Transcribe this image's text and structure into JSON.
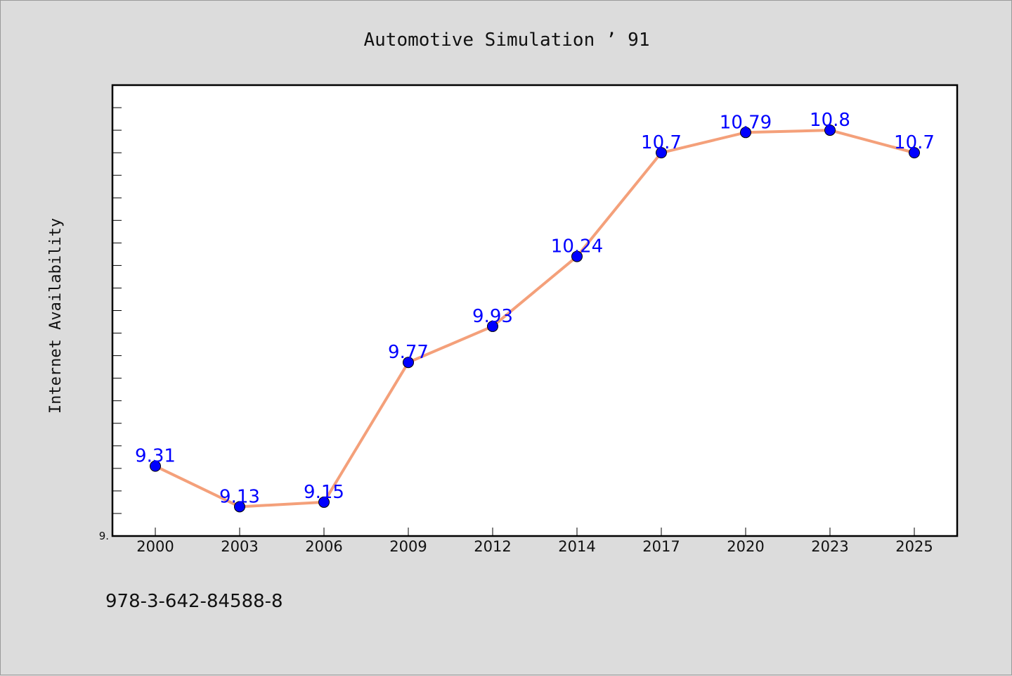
{
  "chart_data": {
    "type": "line",
    "title": "Automotive Simulation ’ 91",
    "xlabel": "",
    "ylabel": "Internet Availability",
    "x": [
      "2000",
      "2003",
      "2006",
      "2009",
      "2012",
      "2014",
      "2017",
      "2020",
      "2023",
      "2025"
    ],
    "series": [
      {
        "values": [
          9.31,
          9.13,
          9.15,
          9.77,
          9.93,
          10.24,
          10.7,
          10.79,
          10.8,
          10.7
        ],
        "labels": [
          "9.31",
          "9.13",
          "9.15",
          "9.77",
          "9.93",
          "10.24",
          "10.7",
          "10.79",
          "10.8",
          "10.7"
        ],
        "line_color": "#f4a07a",
        "marker_color": "#0000ff"
      }
    ],
    "ylim": [
      9.0,
      11.0
    ],
    "ytick_label": "9.",
    "grid": false,
    "legend": "none"
  },
  "footer": {
    "isbn": "978-3-642-84588-8"
  },
  "colors": {
    "background": "#dcdcdc",
    "plot_background": "#ffffff",
    "axis": "#000000"
  }
}
